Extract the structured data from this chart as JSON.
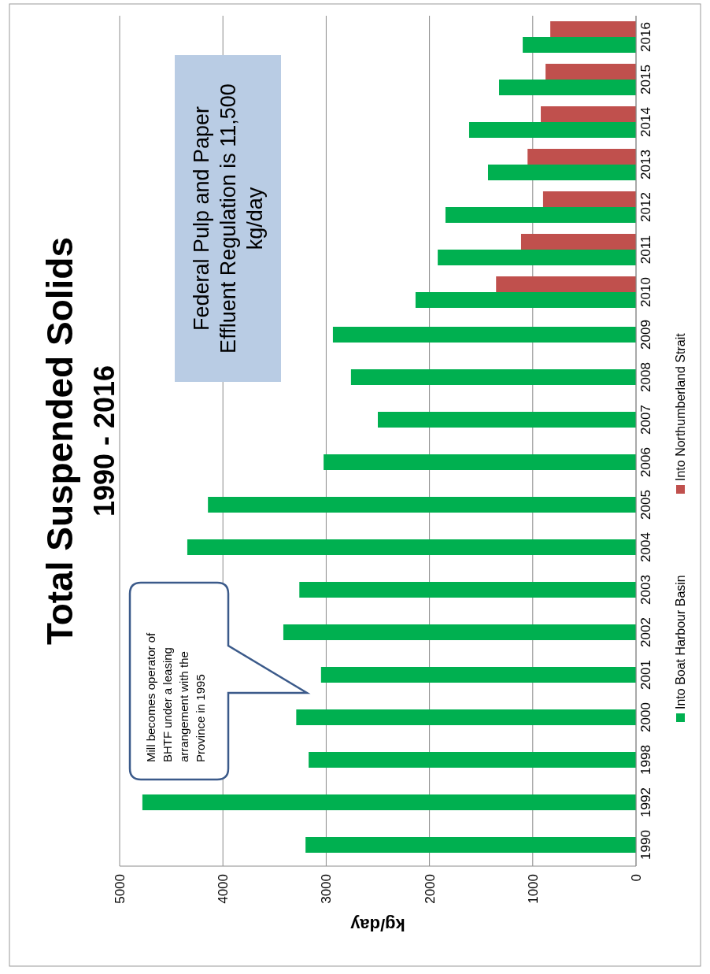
{
  "chart_data": {
    "type": "bar",
    "orientation": "horizontal",
    "title": "Total Suspended Solids",
    "subtitle": "1990 - 2016",
    "xlabel": "kg/day",
    "categories": [
      "2016",
      "2015",
      "2014",
      "2013",
      "2012",
      "2011",
      "2010",
      "2009",
      "2008",
      "2007",
      "2006",
      "2005",
      "2004",
      "2003",
      "2002",
      "2001",
      "2000",
      "1998",
      "1992",
      "1990"
    ],
    "series": [
      {
        "name": "Into Boat Harbour Basin",
        "color": "#00b050",
        "values": [
          1097,
          1326,
          1616,
          1433,
          1845,
          1920,
          2135,
          2935,
          2760,
          2500,
          3025,
          4145,
          4345,
          3260,
          3415,
          3050,
          3290,
          3170,
          4780,
          3200
        ]
      },
      {
        "name": "Into Northumberland Strait",
        "color": "#c0504d",
        "values": [
          830,
          876,
          922,
          1050,
          900,
          1113,
          1355,
          null,
          null,
          null,
          null,
          null,
          null,
          null,
          null,
          null,
          null,
          null,
          null,
          null
        ]
      }
    ],
    "xlim": [
      5000,
      0
    ],
    "xticks": [
      5000,
      4000,
      3000,
      2000,
      1000,
      0
    ],
    "grid": "x",
    "legend": "right",
    "annotations": [
      "Mill becomes operator of BHTF under a leasing arrangement with the Province  in 1995",
      "Federal Pulp and Paper Effluent Regulation is 11,500 kg/day"
    ]
  }
}
